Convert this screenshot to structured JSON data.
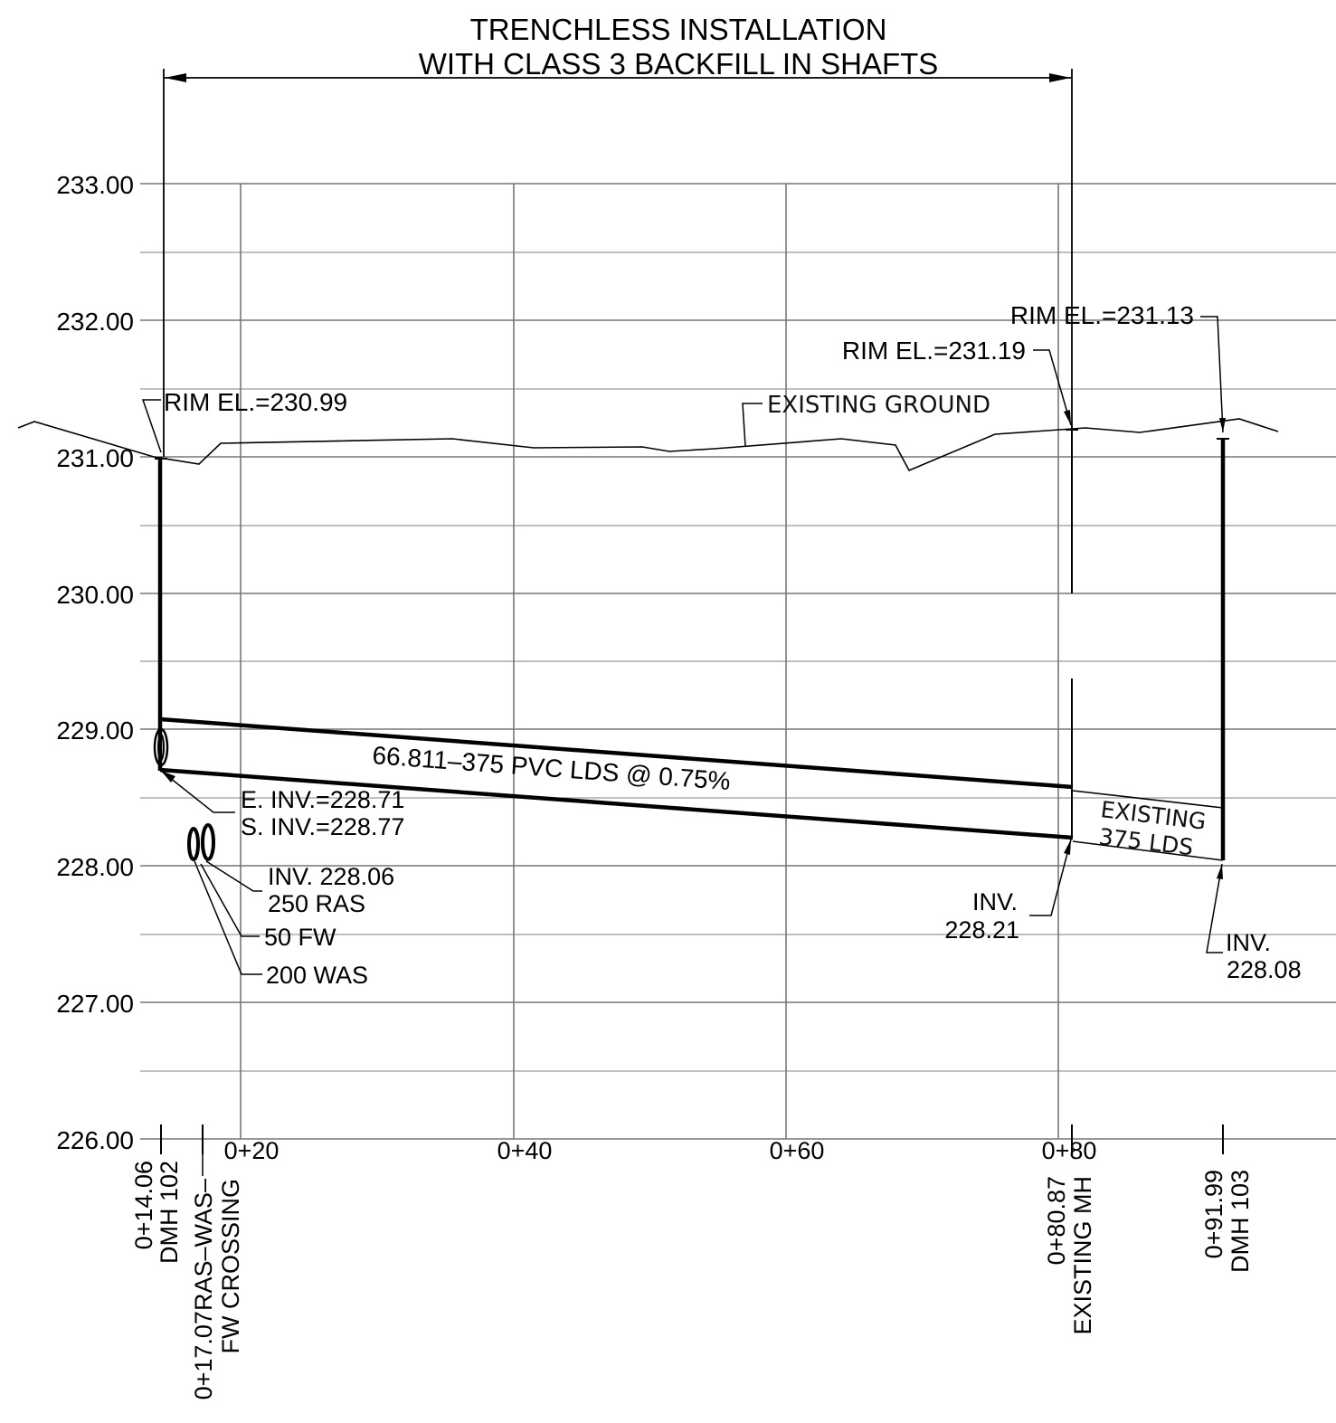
{
  "title": {
    "line1": "TRENCHLESS INSTALLATION",
    "line2": "WITH CLASS 3 BACKFILL IN SHAFTS"
  },
  "elevation_axis": [
    "233.00",
    "232.00",
    "231.00",
    "230.00",
    "229.00",
    "228.00",
    "227.00",
    "226.00"
  ],
  "station_axis": [
    "0+20",
    "0+40",
    "0+60",
    "0+80"
  ],
  "profile": {
    "ground_label": "EXISTING GROUND",
    "pipe_label": "66.811–375 PVC LDS @ 0.75%",
    "existing_pipe_label_1": "EXISTING",
    "existing_pipe_label_2": "375 LDS"
  },
  "manholes": {
    "dmh102": {
      "rim": "RIM EL.=230.99",
      "e_inv": "E. INV.=228.71",
      "s_inv": "S. INV.=228.77",
      "station": "0+14.06",
      "name": "DMH 102"
    },
    "existing_mh": {
      "rim": "RIM EL.=231.19",
      "inv_label": "INV.",
      "inv_value": "228.21",
      "station": "0+80.87",
      "name": "EXISTING MH"
    },
    "dmh103": {
      "rim": "RIM EL.=231.13",
      "inv_label": "INV.",
      "inv_value": "228.08",
      "station": "0+91.99",
      "name": "DMH 103"
    }
  },
  "crossing": {
    "inv": "INV. 228.06",
    "pipe_ras": "250 RAS",
    "pipe_fw": "50 FW",
    "pipe_was": "200 WAS",
    "station": "0+17.07RAS–WAS–",
    "name": "FW CROSSING"
  }
}
